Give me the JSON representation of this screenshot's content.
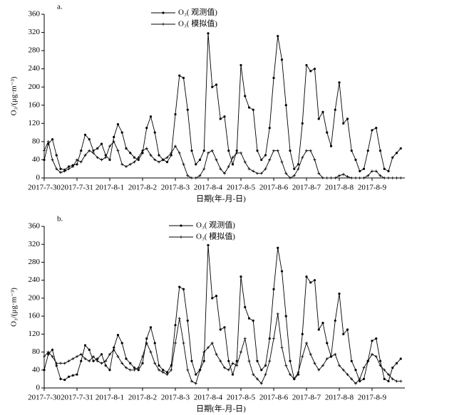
{
  "chart_data": [
    {
      "type": "line",
      "title": "a.",
      "xlabel": "日期(年-月-日)",
      "ylabel": "O₃/(μg·m⁻³)",
      "x": [
        0,
        0.125,
        0.25,
        0.375,
        0.5,
        0.625,
        0.75,
        0.875,
        1,
        1.125,
        1.25,
        1.375,
        1.5,
        1.625,
        1.75,
        1.875,
        2,
        2.125,
        2.25,
        2.375,
        2.5,
        2.625,
        2.75,
        2.875,
        3,
        3.125,
        3.25,
        3.375,
        3.5,
        3.625,
        3.75,
        3.875,
        4,
        4.125,
        4.25,
        4.375,
        4.5,
        4.625,
        4.75,
        4.875,
        5,
        5.125,
        5.25,
        5.375,
        5.5,
        5.625,
        5.75,
        5.875,
        6,
        6.125,
        6.25,
        6.375,
        6.5,
        6.625,
        6.75,
        6.875,
        7,
        7.125,
        7.25,
        7.375,
        7.5,
        7.625,
        7.75,
        7.875,
        8,
        8.125,
        8.25,
        8.375,
        8.5,
        8.625,
        8.75,
        8.875,
        9,
        9.125,
        9.25,
        9.375,
        9.5,
        9.625,
        9.75,
        9.875,
        10,
        10.125,
        10.25,
        10.375,
        10.5,
        10.625,
        10.75,
        10.875
      ],
      "xlim": [
        0,
        11
      ],
      "xticks": [
        {
          "value": 0,
          "label": "2017-7-30"
        },
        {
          "value": 1,
          "label": "2017-7-31"
        },
        {
          "value": 2,
          "label": "2017-8-1"
        },
        {
          "value": 3,
          "label": "2017-8-2"
        },
        {
          "value": 4,
          "label": "2017-8-3"
        },
        {
          "value": 5,
          "label": "2017-8-4"
        },
        {
          "value": 6,
          "label": "2017-8-5"
        },
        {
          "value": 7,
          "label": "2017-8-6"
        },
        {
          "value": 8,
          "label": "2017-8-7"
        },
        {
          "value": 9,
          "label": "2017-8-8"
        },
        {
          "value": 10,
          "label": "2017-8-9"
        }
      ],
      "ylim": [
        0,
        360
      ],
      "yticks": [
        0,
        40,
        80,
        120,
        160,
        200,
        240,
        280,
        320,
        360
      ],
      "series": [
        {
          "name": "O₃( 观测值)",
          "color": "#000000",
          "marker": "dot",
          "values": [
            40,
            75,
            85,
            50,
            20,
            18,
            25,
            28,
            30,
            60,
            95,
            85,
            60,
            65,
            75,
            50,
            40,
            90,
            118,
            100,
            65,
            55,
            45,
            40,
            55,
            110,
            135,
            100,
            50,
            40,
            35,
            50,
            140,
            225,
            220,
            150,
            60,
            30,
            40,
            60,
            318,
            200,
            205,
            130,
            135,
            60,
            30,
            60,
            248,
            180,
            155,
            150,
            60,
            40,
            50,
            110,
            220,
            312,
            260,
            160,
            60,
            20,
            30,
            120,
            248,
            235,
            240,
            130,
            145,
            100,
            70,
            150,
            210,
            120,
            130,
            60,
            40,
            15,
            20,
            60,
            105,
            110,
            60,
            20,
            15,
            45,
            55,
            65
          ]
        },
        {
          "name": "O₃( 模拟值)",
          "color": "#000000",
          "marker": "plus",
          "values": [
            60,
            80,
            40,
            20,
            12,
            15,
            20,
            25,
            40,
            35,
            50,
            60,
            55,
            45,
            40,
            45,
            70,
            80,
            60,
            30,
            25,
            30,
            35,
            45,
            60,
            65,
            50,
            40,
            35,
            40,
            45,
            55,
            70,
            55,
            30,
            5,
            0,
            0,
            5,
            20,
            55,
            60,
            40,
            20,
            10,
            25,
            45,
            55,
            55,
            35,
            20,
            15,
            10,
            10,
            20,
            40,
            60,
            60,
            35,
            10,
            0,
            5,
            20,
            45,
            60,
            60,
            40,
            10,
            0,
            0,
            0,
            0,
            5,
            8,
            3,
            0,
            0,
            0,
            0,
            5,
            15,
            15,
            5,
            0,
            0,
            0,
            0,
            0
          ]
        }
      ]
    },
    {
      "type": "line",
      "title": "b.",
      "xlabel": "日期(年-月-日)",
      "ylabel": "O₃/(μg·m⁻³)",
      "x": [
        0,
        0.125,
        0.25,
        0.375,
        0.5,
        0.625,
        0.75,
        0.875,
        1,
        1.125,
        1.25,
        1.375,
        1.5,
        1.625,
        1.75,
        1.875,
        2,
        2.125,
        2.25,
        2.375,
        2.5,
        2.625,
        2.75,
        2.875,
        3,
        3.125,
        3.25,
        3.375,
        3.5,
        3.625,
        3.75,
        3.875,
        4,
        4.125,
        4.25,
        4.375,
        4.5,
        4.625,
        4.75,
        4.875,
        5,
        5.125,
        5.25,
        5.375,
        5.5,
        5.625,
        5.75,
        5.875,
        6,
        6.125,
        6.25,
        6.375,
        6.5,
        6.625,
        6.75,
        6.875,
        7,
        7.125,
        7.25,
        7.375,
        7.5,
        7.625,
        7.75,
        7.875,
        8,
        8.125,
        8.25,
        8.375,
        8.5,
        8.625,
        8.75,
        8.875,
        9,
        9.125,
        9.25,
        9.375,
        9.5,
        9.625,
        9.75,
        9.875,
        10,
        10.125,
        10.25,
        10.375,
        10.5,
        10.625,
        10.75,
        10.875
      ],
      "xlim": [
        0,
        11
      ],
      "xticks": [
        {
          "value": 0,
          "label": "2017-7-30"
        },
        {
          "value": 1,
          "label": "2017-7-31"
        },
        {
          "value": 2,
          "label": "2017-8-1"
        },
        {
          "value": 3,
          "label": "2017-8-2"
        },
        {
          "value": 4,
          "label": "2017-8-3"
        },
        {
          "value": 5,
          "label": "2017-8-4"
        },
        {
          "value": 6,
          "label": "2017-8-5"
        },
        {
          "value": 7,
          "label": "2017-8-6"
        },
        {
          "value": 8,
          "label": "2017-8-7"
        },
        {
          "value": 9,
          "label": "2017-8-8"
        },
        {
          "value": 10,
          "label": "2017-8-9"
        }
      ],
      "ylim": [
        0,
        360
      ],
      "yticks": [
        0,
        40,
        80,
        120,
        160,
        200,
        240,
        280,
        320,
        360
      ],
      "series": [
        {
          "name": "O₃( 观测值)",
          "color": "#000000",
          "marker": "dot",
          "values": [
            40,
            75,
            85,
            50,
            20,
            18,
            25,
            28,
            30,
            60,
            95,
            85,
            60,
            65,
            75,
            50,
            40,
            90,
            118,
            100,
            65,
            55,
            45,
            40,
            55,
            110,
            135,
            100,
            50,
            40,
            35,
            50,
            140,
            225,
            220,
            150,
            60,
            30,
            40,
            60,
            318,
            200,
            205,
            130,
            135,
            60,
            30,
            60,
            248,
            180,
            155,
            150,
            60,
            40,
            50,
            110,
            220,
            312,
            260,
            160,
            60,
            20,
            30,
            120,
            248,
            235,
            240,
            130,
            145,
            100,
            70,
            150,
            210,
            120,
            130,
            60,
            40,
            15,
            20,
            60,
            105,
            110,
            60,
            20,
            15,
            45,
            55,
            65
          ]
        },
        {
          "name": "O₃( 模拟值)",
          "color": "#000000",
          "marker": "plus",
          "values": [
            70,
            80,
            70,
            55,
            55,
            55,
            60,
            65,
            70,
            75,
            65,
            60,
            70,
            60,
            55,
            60,
            75,
            85,
            70,
            55,
            45,
            40,
            40,
            45,
            70,
            100,
            80,
            55,
            40,
            35,
            30,
            40,
            100,
            155,
            100,
            40,
            15,
            10,
            40,
            80,
            90,
            100,
            75,
            60,
            45,
            40,
            55,
            50,
            80,
            110,
            60,
            30,
            20,
            10,
            30,
            60,
            110,
            165,
            90,
            50,
            30,
            20,
            35,
            70,
            100,
            75,
            55,
            40,
            50,
            65,
            70,
            75,
            50,
            40,
            30,
            20,
            10,
            20,
            45,
            60,
            75,
            70,
            50,
            40,
            30,
            20,
            15,
            15
          ]
        }
      ]
    }
  ]
}
